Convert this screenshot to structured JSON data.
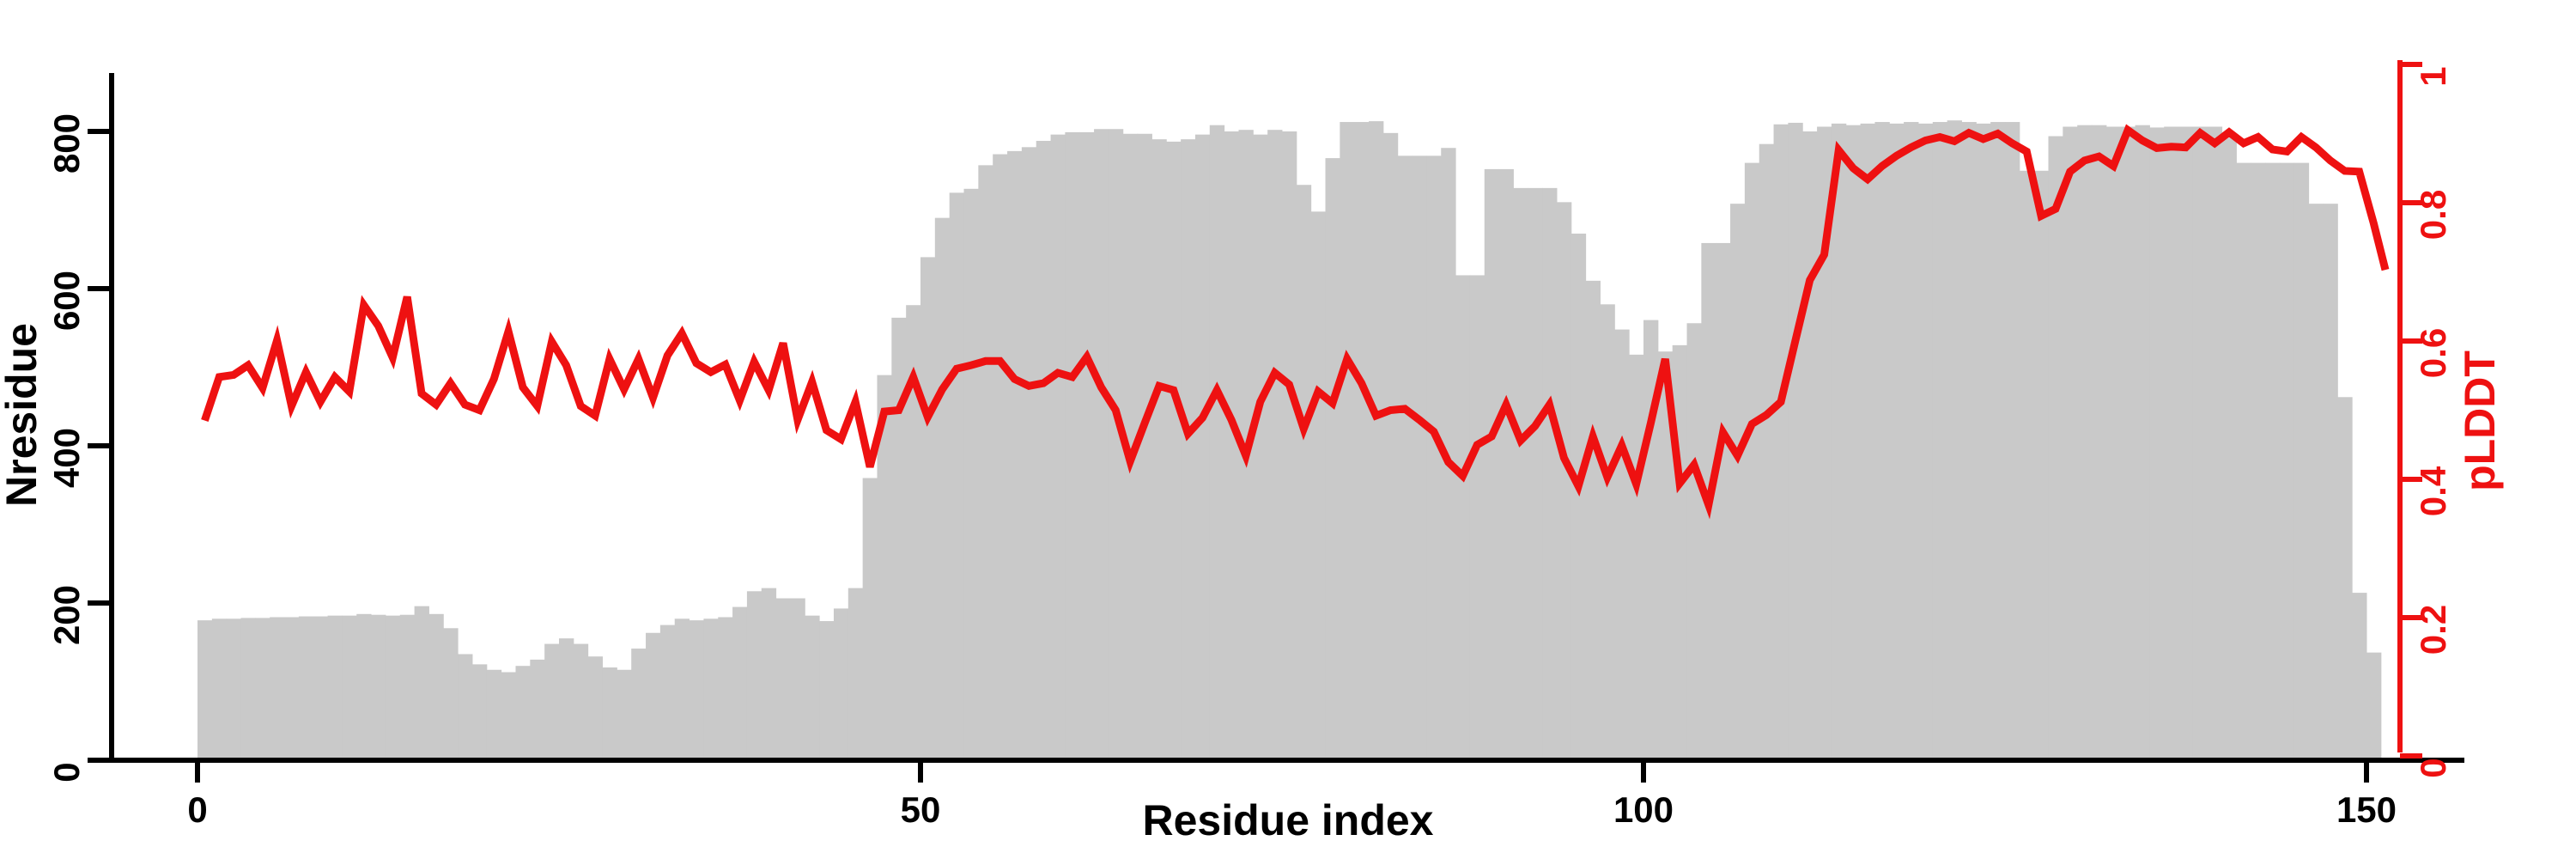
{
  "chart_data": {
    "type": "bar",
    "title": "",
    "xlabel": "Residue index",
    "ylabel_left": "Nresidue",
    "ylabel_right": "pLDDT",
    "x_ticks": [
      "0",
      "50",
      "100",
      "150"
    ],
    "x_tick_values": [
      0,
      50,
      100,
      150
    ],
    "left_ticks": [
      "0",
      "200",
      "400",
      "600",
      "800"
    ],
    "left_tick_values": [
      0,
      200,
      400,
      600,
      800
    ],
    "right_ticks": [
      "0",
      "0.2",
      "0.4",
      "0.6",
      "0.8",
      "1"
    ],
    "right_tick_values": [
      0,
      0.2,
      0.4,
      0.6,
      0.8,
      1
    ],
    "ylim_left": [
      0,
      875
    ],
    "ylim_right": [
      0,
      1
    ],
    "grid": false,
    "legend": false,
    "bar_color": "#c9c9c9",
    "line_color": "#ee1111",
    "axis_color": "#000000",
    "residue_start": 0,
    "bars": {
      "name": "Nresidue",
      "values": [
        178,
        180,
        180,
        181,
        181,
        182,
        182,
        183,
        183,
        184,
        184,
        186,
        185,
        184,
        185,
        196,
        186,
        168,
        135,
        122,
        115,
        112,
        120,
        128,
        148,
        155,
        148,
        132,
        118,
        115,
        142,
        162,
        172,
        180,
        178,
        180,
        182,
        195,
        215,
        219,
        206,
        206,
        184,
        177,
        193,
        219,
        359,
        490,
        563,
        579,
        640,
        690,
        722,
        727,
        757,
        771,
        775,
        780,
        788,
        796,
        799,
        799,
        803,
        803,
        797,
        797,
        790,
        787,
        790,
        796,
        808,
        800,
        802,
        796,
        802,
        800,
        732,
        698,
        766,
        812,
        812,
        813,
        798,
        769,
        769,
        769,
        779,
        617,
        617,
        752,
        752,
        728,
        728,
        728,
        710,
        670,
        610,
        580,
        548,
        516,
        560,
        520,
        528,
        556,
        658,
        658,
        708,
        760,
        784,
        809,
        811,
        800,
        806,
        810,
        808,
        810,
        812,
        810,
        812,
        810,
        812,
        814,
        812,
        810,
        812,
        812,
        750,
        750,
        794,
        806,
        808,
        808,
        806,
        806,
        808,
        805,
        806,
        806,
        806,
        806,
        792,
        760,
        760,
        760,
        760,
        760,
        708,
        708,
        462,
        213,
        137
      ]
    },
    "line": {
      "name": "pLDDT",
      "axis": "right",
      "values": [
        0.485,
        0.548,
        0.551,
        0.565,
        0.532,
        0.601,
        0.506,
        0.555,
        0.512,
        0.548,
        0.527,
        0.652,
        0.622,
        0.576,
        0.664,
        0.524,
        0.508,
        0.539,
        0.508,
        0.5,
        0.545,
        0.614,
        0.533,
        0.506,
        0.599,
        0.565,
        0.506,
        0.492,
        0.574,
        0.53,
        0.574,
        0.518,
        0.579,
        0.611,
        0.568,
        0.555,
        0.566,
        0.514,
        0.57,
        0.529,
        0.597,
        0.486,
        0.541,
        0.471,
        0.458,
        0.512,
        0.418,
        0.498,
        0.5,
        0.548,
        0.49,
        0.53,
        0.56,
        0.565,
        0.571,
        0.571,
        0.545,
        0.535,
        0.539,
        0.554,
        0.548,
        0.577,
        0.533,
        0.5,
        0.426,
        0.481,
        0.535,
        0.529,
        0.466,
        0.489,
        0.529,
        0.486,
        0.434,
        0.512,
        0.554,
        0.537,
        0.473,
        0.527,
        0.51,
        0.574,
        0.539,
        0.492,
        0.5,
        0.502,
        0.486,
        0.469,
        0.425,
        0.405,
        0.45,
        0.462,
        0.508,
        0.456,
        0.477,
        0.508,
        0.431,
        0.39,
        0.462,
        0.403,
        0.449,
        0.393,
        0.481,
        0.574,
        0.394,
        0.421,
        0.363,
        0.468,
        0.434,
        0.48,
        0.493,
        0.512,
        0.6,
        0.688,
        0.725,
        0.876,
        0.85,
        0.834,
        0.853,
        0.868,
        0.88,
        0.89,
        0.895,
        0.889,
        0.901,
        0.892,
        0.9,
        0.886,
        0.874,
        0.781,
        0.791,
        0.845,
        0.861,
        0.867,
        0.853,
        0.905,
        0.89,
        0.879,
        0.881,
        0.88,
        0.901,
        0.886,
        0.902,
        0.886,
        0.895,
        0.877,
        0.874,
        0.895,
        0.88,
        0.861,
        0.846,
        0.845,
        0.77,
        0.703
      ]
    }
  }
}
